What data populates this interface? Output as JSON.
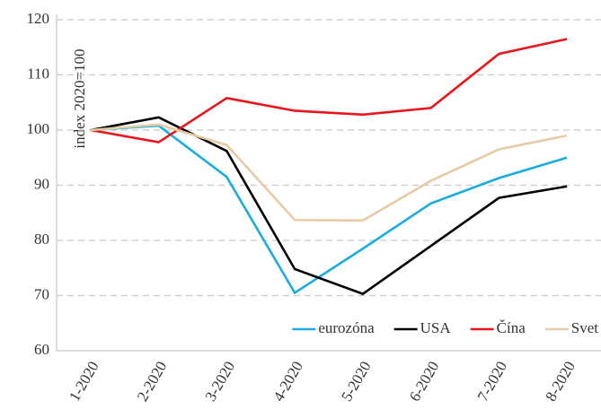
{
  "chart_data": {
    "type": "line",
    "y_label": "index 2020=100",
    "categories": [
      "1-2020",
      "2-2020",
      "3-2020",
      "4-2020",
      "5-2020",
      "6-2020",
      "7-2020",
      "8-2020"
    ],
    "series": [
      {
        "name": "eurozóna",
        "color": "#1aace0",
        "values": [
          100,
          100.8,
          91.5,
          70.5,
          78.5,
          86.7,
          91.3,
          95
        ]
      },
      {
        "name": "USA",
        "color": "#000000",
        "values": [
          100,
          102.3,
          96.2,
          74.8,
          70.3,
          79,
          87.7,
          89.8
        ]
      },
      {
        "name": "Čína",
        "color": "#e8161b",
        "values": [
          100,
          97.8,
          105.8,
          103.5,
          102.8,
          104,
          113.8,
          116.5
        ]
      },
      {
        "name": "Svet",
        "color": "#e6cba5",
        "values": [
          100,
          101,
          97.3,
          83.7,
          83.6,
          90.8,
          96.5,
          99
        ]
      }
    ],
    "ylim": [
      60,
      120
    ],
    "yticks": [
      60,
      70,
      80,
      90,
      100,
      110,
      120
    ],
    "grid": true,
    "legend": "bottom-right"
  }
}
